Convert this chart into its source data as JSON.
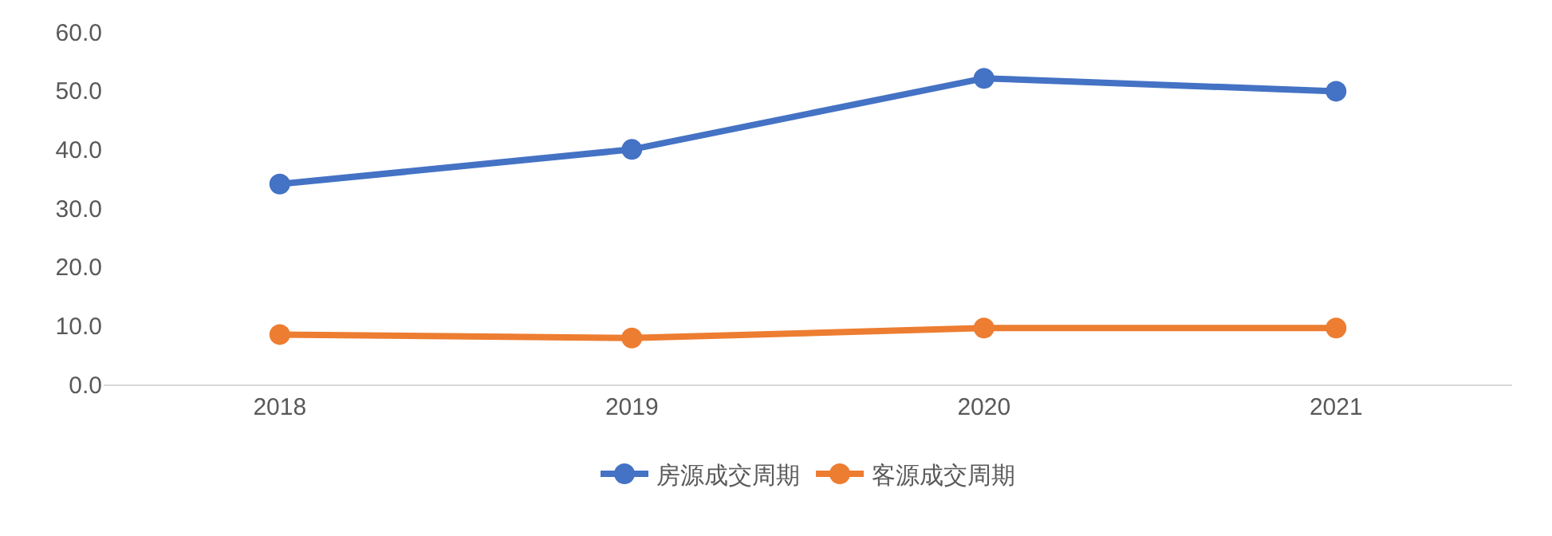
{
  "chart_data": {
    "type": "line",
    "categories": [
      "2018",
      "2019",
      "2020",
      "2021"
    ],
    "series": [
      {
        "name": "房源成交周期",
        "color": "#4472c4",
        "values": [
          34.1,
          40.0,
          52.1,
          49.9
        ]
      },
      {
        "name": "客源成交周期",
        "color": "#ed7d31",
        "values": [
          8.5,
          7.9,
          9.6,
          9.6
        ]
      }
    ],
    "ylim": [
      0,
      60
    ],
    "yticks": [
      {
        "value": 0,
        "label": "0.0"
      },
      {
        "value": 10,
        "label": "10.0"
      },
      {
        "value": 20,
        "label": "20.0"
      },
      {
        "value": 30,
        "label": "30.0"
      },
      {
        "value": 40,
        "label": "40.0"
      },
      {
        "value": 50,
        "label": "50.0"
      },
      {
        "value": 60,
        "label": "60.0"
      }
    ],
    "grid": false,
    "legend": "bottom",
    "marker": "circle",
    "line_style": "solid"
  }
}
